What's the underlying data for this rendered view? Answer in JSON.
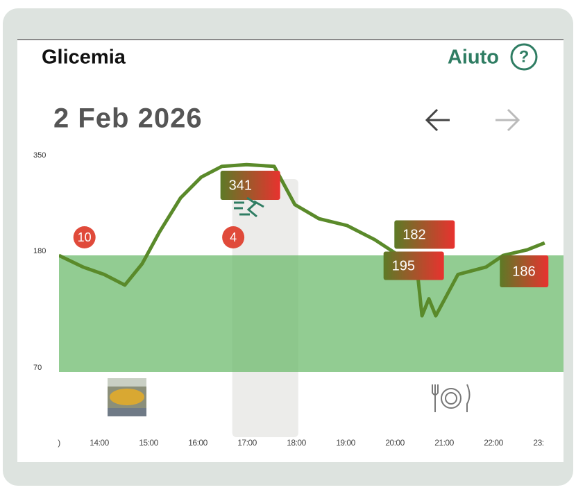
{
  "header": {
    "title": "Glicemia",
    "help": "Aiuto",
    "help_icon": "?"
  },
  "date": "2 Feb 2026",
  "chart_data": {
    "type": "line",
    "x": [
      13.18,
      13.67,
      14.1,
      14.52,
      14.87,
      15.22,
      15.65,
      16.07,
      16.49,
      16.99,
      17.55,
      17.97,
      18.46,
      19.03,
      19.59,
      20.01,
      20.44,
      20.55,
      20.69,
      20.83,
      21.28,
      21.85,
      22.2,
      22.69,
      23.04
    ],
    "values": [
      180,
      169,
      162,
      152,
      172,
      221,
      282,
      319,
      338,
      341,
      338,
      270,
      245,
      233,
      208,
      184,
      172,
      123,
      139,
      123,
      162,
      169,
      180,
      190,
      202
    ],
    "color": "#5a8a2a",
    "ylim": [
      70,
      350
    ],
    "yticks": [
      70,
      180,
      350
    ],
    "target_range": [
      70,
      180
    ],
    "xticks": [
      {
        "value": 13,
        "label": ")"
      },
      {
        "value": 14,
        "label": "14:00"
      },
      {
        "value": 15,
        "label": "15:00"
      },
      {
        "value": 16,
        "label": "16:00"
      },
      {
        "value": 17,
        "label": "17:00"
      },
      {
        "value": 18,
        "label": "18:00"
      },
      {
        "value": 19,
        "label": "19:00"
      },
      {
        "value": 20,
        "label": "20:00"
      },
      {
        "value": 21,
        "label": "21:00"
      },
      {
        "value": 22,
        "label": "22:00"
      },
      {
        "value": 23,
        "label": "23:"
      }
    ],
    "exercise": [
      16.7,
      18.04
    ],
    "value_labels": [
      {
        "x": 16.46,
        "value": 341
      },
      {
        "x": 19.99,
        "value": 182
      },
      {
        "x": 19.77,
        "value": 195
      },
      {
        "x": 22.13,
        "value": 186
      }
    ],
    "badges": [
      {
        "x": 13.7,
        "value": 10
      },
      {
        "x": 16.72,
        "value": 4
      }
    ]
  }
}
